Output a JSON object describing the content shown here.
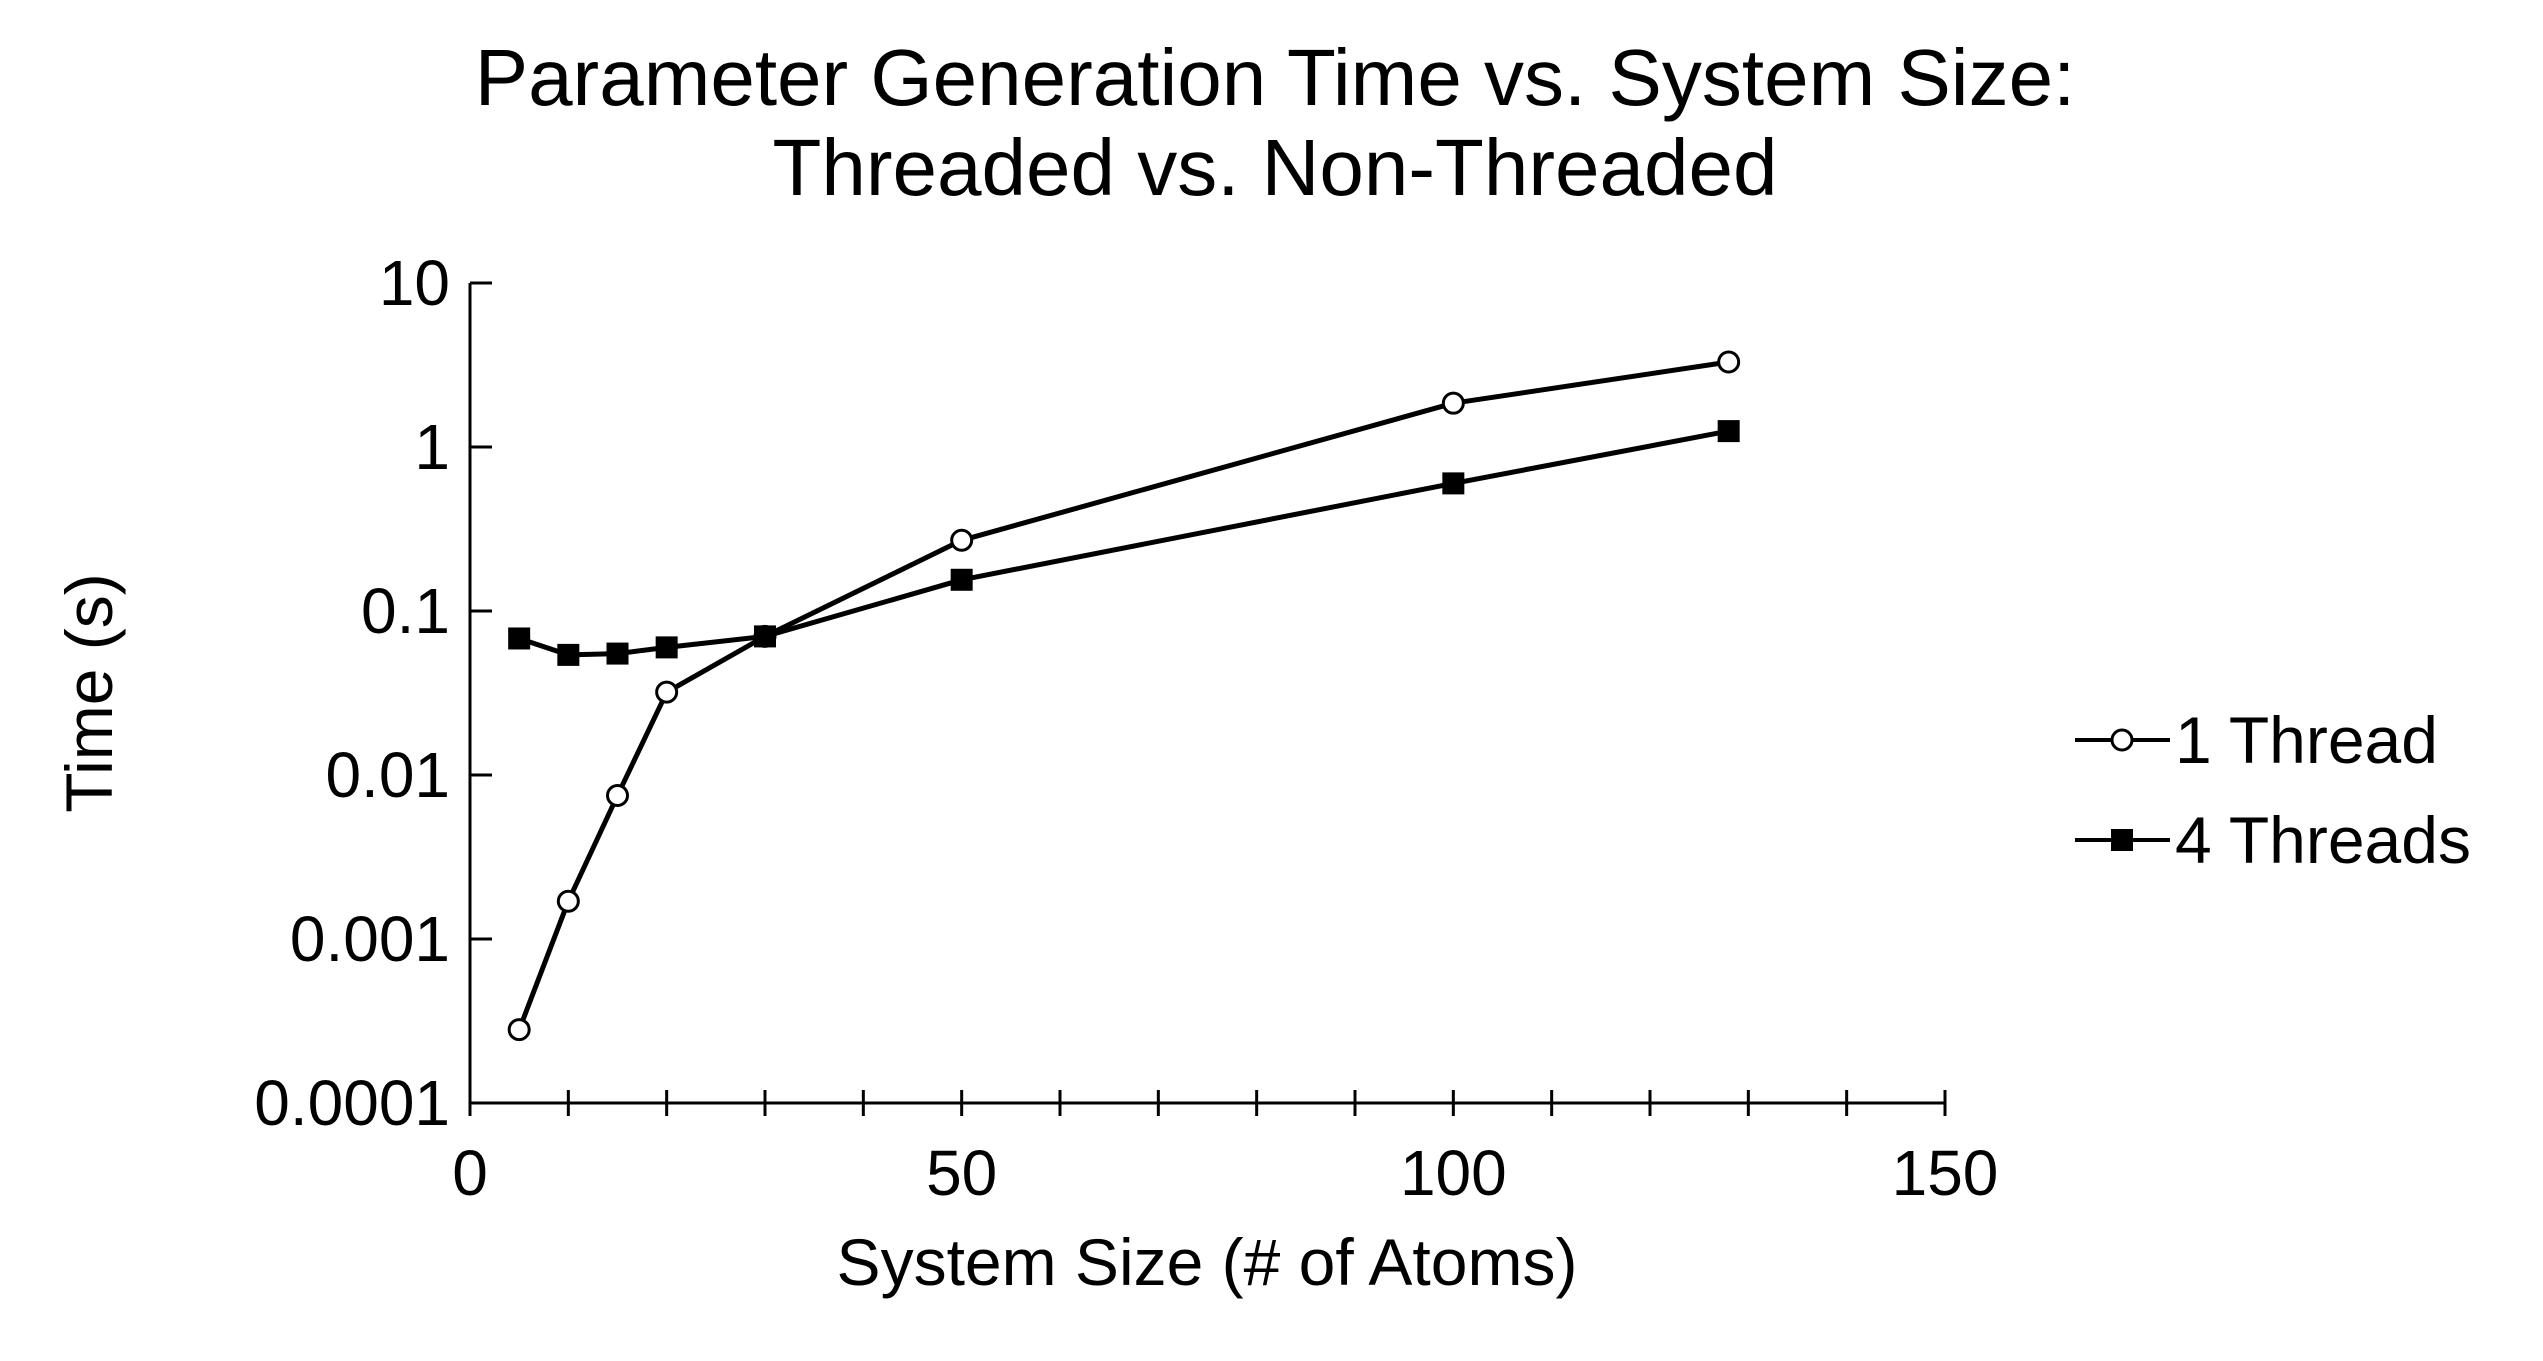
{
  "chart_data": {
    "type": "line",
    "title": "Parameter Generation Time vs. System Size:",
    "subtitle": "Threaded vs. Non-Threaded",
    "xlabel": "System Size (# of Atoms)",
    "ylabel": "Time (s)",
    "xlim": [
      0,
      150
    ],
    "ylim": [
      0.0001,
      10
    ],
    "yscale": "log",
    "x_ticks": [
      0,
      50,
      100,
      150
    ],
    "x_minor_step": 10,
    "y_ticks": [
      0.0001,
      0.001,
      0.01,
      0.1,
      1,
      10
    ],
    "y_tick_labels": [
      "0.0001",
      "0.001",
      "0.01",
      "0.1",
      "1",
      "10"
    ],
    "grid": false,
    "legend_position": "right",
    "series": [
      {
        "name": "1 Thread",
        "marker": "open-circle",
        "color": "#000000",
        "x": [
          5,
          10,
          15,
          20,
          30,
          50,
          100,
          128
        ],
        "y": [
          0.00028,
          0.0017,
          0.0075,
          0.032,
          0.07,
          0.27,
          1.85,
          3.3
        ]
      },
      {
        "name": "4 Threads",
        "marker": "filled-square",
        "color": "#000000",
        "x": [
          5,
          10,
          15,
          20,
          30,
          50,
          100,
          128
        ],
        "y": [
          0.068,
          0.054,
          0.055,
          0.06,
          0.07,
          0.155,
          0.6,
          1.25
        ]
      }
    ]
  }
}
